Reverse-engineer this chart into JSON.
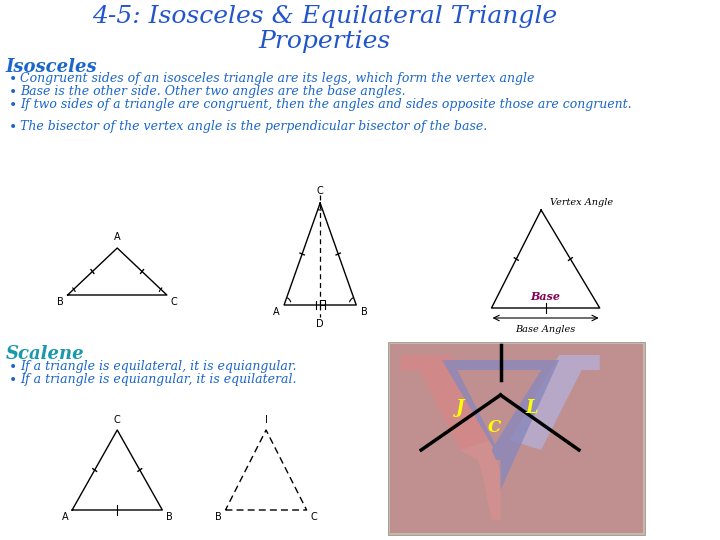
{
  "title_line1": "4-5: Isosceles & Equilateral Triangle",
  "title_line2": "Properties",
  "title_color": "#2255cc",
  "title_fontsize": 18,
  "bg_color": "#ffffff",
  "section1_header": "Isosceles",
  "section1_color": "#1a66cc",
  "section1_fontsize": 13,
  "bullets_isosceles": [
    "Congruent sides of an isosceles triangle are its legs, which form the vertex angle",
    "Base is the other side. Other two angles are the base angles.",
    "If two sides of a triangle are congruent, then the angles and sides opposite those are congruent.",
    "The bisector of the vertex angle is the perpendicular bisector of the base."
  ],
  "bullet_fontsize": 9,
  "bullet_color": "#1a66cc",
  "section2_header": "Scalene",
  "section2_color": "#1a99aa",
  "section2_fontsize": 13,
  "bullets_scalene": [
    "If a triangle is equilateral, it is equiangular.",
    "If a triangle is equiangular, it is equilateral."
  ],
  "vertex_angle_label": "Vertex Angle",
  "base_label": "Base",
  "base_angles_label": "Base Angles",
  "label_color_vertex": "#000000",
  "label_color_base": "#880055",
  "label_color_baseangles": "#000000"
}
